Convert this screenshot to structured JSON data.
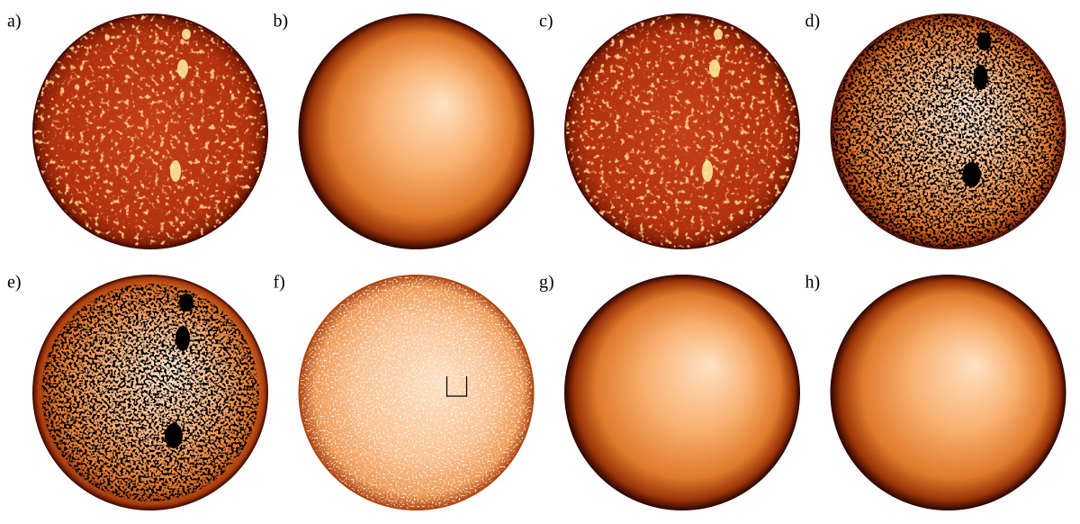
{
  "panels": [
    {
      "label": "a)"
    },
    {
      "label": "b)"
    },
    {
      "label": "c)"
    },
    {
      "label": "d)"
    },
    {
      "label": "e)"
    },
    {
      "label": "f)"
    },
    {
      "label": "g)"
    },
    {
      "label": "h)"
    }
  ]
}
